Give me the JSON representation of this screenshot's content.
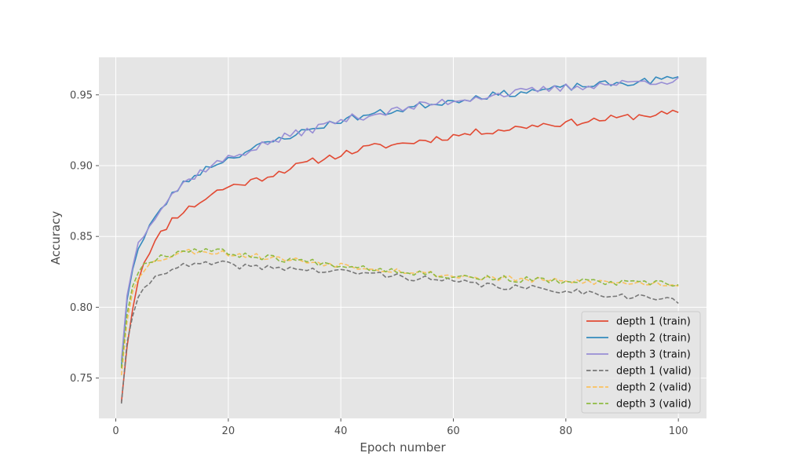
{
  "chart_data": {
    "type": "line",
    "title": "",
    "xlabel": "Epoch number",
    "ylabel": "Accuracy",
    "xlim": [
      -3,
      105
    ],
    "ylim": [
      0.7215,
      0.9765
    ],
    "xticks": [
      0,
      20,
      40,
      60,
      80,
      100
    ],
    "yticks": [
      0.75,
      0.8,
      0.85,
      0.9,
      0.95
    ],
    "xtick_labels": [
      "0",
      "20",
      "40",
      "60",
      "80",
      "100"
    ],
    "ytick_labels": [
      "0.75",
      "0.80",
      "0.85",
      "0.90",
      "0.95"
    ],
    "grid": true,
    "legend_position": "lower-right",
    "background": "#e5e5e5",
    "epochs": 100,
    "series": [
      {
        "name": "depth 1 (train)",
        "color": "#e24a33",
        "dash": "solid",
        "anchors": [
          [
            1,
            0.733
          ],
          [
            2,
            0.772
          ],
          [
            3,
            0.8
          ],
          [
            4,
            0.82
          ],
          [
            5,
            0.832
          ],
          [
            6,
            0.84
          ],
          [
            8,
            0.852
          ],
          [
            10,
            0.862
          ],
          [
            12,
            0.868
          ],
          [
            14,
            0.872
          ],
          [
            16,
            0.877
          ],
          [
            18,
            0.882
          ],
          [
            20,
            0.885
          ],
          [
            25,
            0.89
          ],
          [
            30,
            0.897
          ],
          [
            35,
            0.903
          ],
          [
            40,
            0.908
          ],
          [
            45,
            0.913
          ],
          [
            50,
            0.915
          ],
          [
            55,
            0.918
          ],
          [
            60,
            0.921
          ],
          [
            65,
            0.924
          ],
          [
            70,
            0.926
          ],
          [
            75,
            0.929
          ],
          [
            80,
            0.93
          ],
          [
            85,
            0.932
          ],
          [
            90,
            0.934
          ],
          [
            95,
            0.936
          ],
          [
            100,
            0.937
          ]
        ],
        "noise": 0.0025,
        "seed": 11
      },
      {
        "name": "depth 2 (train)",
        "color": "#348abd",
        "dash": "solid",
        "anchors": [
          [
            1,
            0.758
          ],
          [
            2,
            0.805
          ],
          [
            3,
            0.828
          ],
          [
            4,
            0.842
          ],
          [
            5,
            0.848
          ],
          [
            6,
            0.858
          ],
          [
            8,
            0.868
          ],
          [
            10,
            0.88
          ],
          [
            12,
            0.887
          ],
          [
            14,
            0.893
          ],
          [
            16,
            0.898
          ],
          [
            18,
            0.902
          ],
          [
            20,
            0.905
          ],
          [
            25,
            0.913
          ],
          [
            30,
            0.92
          ],
          [
            35,
            0.926
          ],
          [
            40,
            0.932
          ],
          [
            45,
            0.936
          ],
          [
            50,
            0.939
          ],
          [
            55,
            0.943
          ],
          [
            60,
            0.946
          ],
          [
            65,
            0.949
          ],
          [
            70,
            0.951
          ],
          [
            75,
            0.953
          ],
          [
            80,
            0.955
          ],
          [
            85,
            0.957
          ],
          [
            90,
            0.958
          ],
          [
            95,
            0.96
          ],
          [
            100,
            0.962
          ]
        ],
        "noise": 0.0025,
        "seed": 23
      },
      {
        "name": "depth 3 (train)",
        "color": "#988ed5",
        "dash": "solid",
        "anchors": [
          [
            1,
            0.762
          ],
          [
            2,
            0.808
          ],
          [
            3,
            0.83
          ],
          [
            4,
            0.845
          ],
          [
            5,
            0.852
          ],
          [
            6,
            0.86
          ],
          [
            8,
            0.87
          ],
          [
            10,
            0.88
          ],
          [
            12,
            0.887
          ],
          [
            14,
            0.893
          ],
          [
            16,
            0.898
          ],
          [
            18,
            0.902
          ],
          [
            20,
            0.905
          ],
          [
            25,
            0.913
          ],
          [
            30,
            0.92
          ],
          [
            35,
            0.926
          ],
          [
            40,
            0.932
          ],
          [
            45,
            0.936
          ],
          [
            50,
            0.939
          ],
          [
            55,
            0.943
          ],
          [
            60,
            0.946
          ],
          [
            65,
            0.949
          ],
          [
            70,
            0.951
          ],
          [
            75,
            0.953
          ],
          [
            80,
            0.955
          ],
          [
            85,
            0.957
          ],
          [
            90,
            0.958
          ],
          [
            95,
            0.96
          ],
          [
            100,
            0.96
          ]
        ],
        "noise": 0.003,
        "seed": 37
      },
      {
        "name": "depth 1 (valid)",
        "color": "#777777",
        "dash": "dashed",
        "anchors": [
          [
            1,
            0.732
          ],
          [
            2,
            0.775
          ],
          [
            3,
            0.795
          ],
          [
            4,
            0.805
          ],
          [
            5,
            0.812
          ],
          [
            6,
            0.818
          ],
          [
            8,
            0.824
          ],
          [
            10,
            0.828
          ],
          [
            12,
            0.829
          ],
          [
            15,
            0.83
          ],
          [
            18,
            0.831
          ],
          [
            20,
            0.83
          ],
          [
            25,
            0.828
          ],
          [
            30,
            0.828
          ],
          [
            35,
            0.826
          ],
          [
            40,
            0.825
          ],
          [
            45,
            0.824
          ],
          [
            50,
            0.822
          ],
          [
            55,
            0.82
          ],
          [
            60,
            0.818
          ],
          [
            65,
            0.816
          ],
          [
            70,
            0.814
          ],
          [
            75,
            0.813
          ],
          [
            80,
            0.812
          ],
          [
            85,
            0.81
          ],
          [
            90,
            0.808
          ],
          [
            95,
            0.807
          ],
          [
            100,
            0.804
          ]
        ],
        "noise": 0.0022,
        "seed": 41
      },
      {
        "name": "depth 2 (valid)",
        "color": "#fbc15e",
        "dash": "dashed",
        "anchors": [
          [
            1,
            0.752
          ],
          [
            2,
            0.79
          ],
          [
            3,
            0.812
          ],
          [
            4,
            0.822
          ],
          [
            5,
            0.827
          ],
          [
            6,
            0.83
          ],
          [
            8,
            0.834
          ],
          [
            10,
            0.837
          ],
          [
            12,
            0.839
          ],
          [
            15,
            0.84
          ],
          [
            18,
            0.839
          ],
          [
            20,
            0.838
          ],
          [
            25,
            0.836
          ],
          [
            30,
            0.834
          ],
          [
            35,
            0.832
          ],
          [
            40,
            0.83
          ],
          [
            45,
            0.828
          ],
          [
            50,
            0.826
          ],
          [
            55,
            0.824
          ],
          [
            60,
            0.822
          ],
          [
            65,
            0.821
          ],
          [
            70,
            0.82
          ],
          [
            75,
            0.819
          ],
          [
            80,
            0.818
          ],
          [
            85,
            0.818
          ],
          [
            90,
            0.817
          ],
          [
            95,
            0.817
          ],
          [
            100,
            0.816
          ]
        ],
        "noise": 0.0022,
        "seed": 53
      },
      {
        "name": "depth 3 (valid)",
        "color": "#8eba42",
        "dash": "dashed",
        "anchors": [
          [
            1,
            0.757
          ],
          [
            2,
            0.795
          ],
          [
            3,
            0.816
          ],
          [
            4,
            0.825
          ],
          [
            5,
            0.83
          ],
          [
            6,
            0.833
          ],
          [
            8,
            0.836
          ],
          [
            10,
            0.838
          ],
          [
            12,
            0.84
          ],
          [
            15,
            0.841
          ],
          [
            18,
            0.84
          ],
          [
            20,
            0.838
          ],
          [
            25,
            0.836
          ],
          [
            30,
            0.834
          ],
          [
            35,
            0.832
          ],
          [
            40,
            0.83
          ],
          [
            45,
            0.828
          ],
          [
            50,
            0.826
          ],
          [
            55,
            0.824
          ],
          [
            60,
            0.822
          ],
          [
            65,
            0.821
          ],
          [
            70,
            0.82
          ],
          [
            75,
            0.819
          ],
          [
            80,
            0.818
          ],
          [
            85,
            0.818
          ],
          [
            90,
            0.817
          ],
          [
            95,
            0.817
          ],
          [
            100,
            0.816
          ]
        ],
        "noise": 0.0022,
        "seed": 67
      }
    ]
  }
}
